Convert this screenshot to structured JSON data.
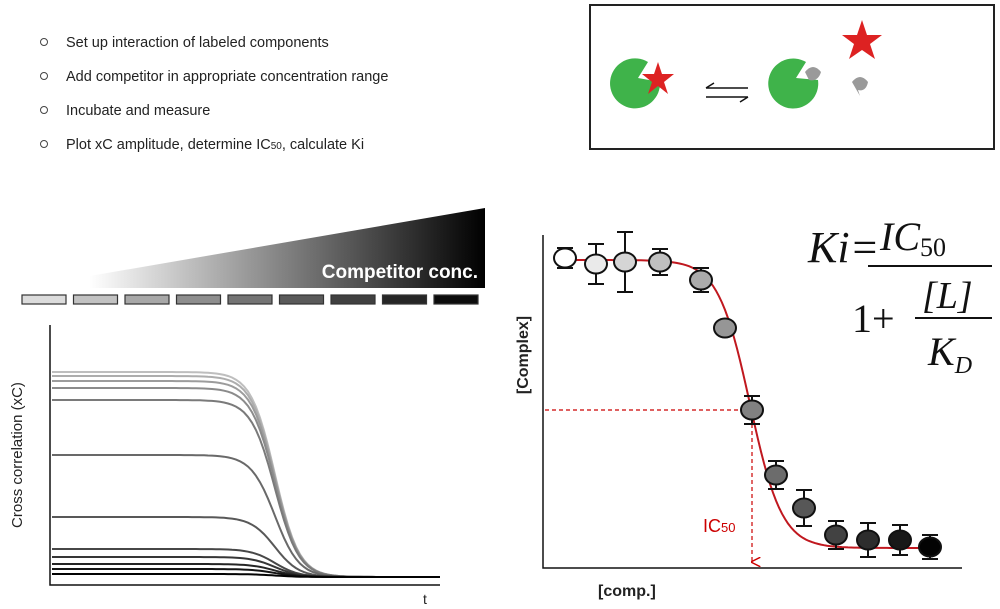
{
  "steps": [
    "Set up interaction of labeled components",
    "Add competitor in appropriate concentration range",
    "Incubate and measure",
    {
      "text": "Plot xC amplitude, determine IC",
      "sub": "50",
      "tail": ", calculate Ki"
    }
  ],
  "gradient_label": "Competitor conc.",
  "left_plot": {
    "y_label": "Cross correlation (xC)",
    "x_label": "t"
  },
  "right_plot": {
    "y_label": "[Complex]",
    "x_label": "[comp.]",
    "marker": {
      "text": "IC",
      "sub": "50"
    }
  },
  "formula": {
    "lhs": "Ki=",
    "num": "IC",
    "num_sub": "50",
    "den_prefix": "1+",
    "inner_num": "[L]",
    "inner_den": "K",
    "inner_den_sub": "D"
  }
}
